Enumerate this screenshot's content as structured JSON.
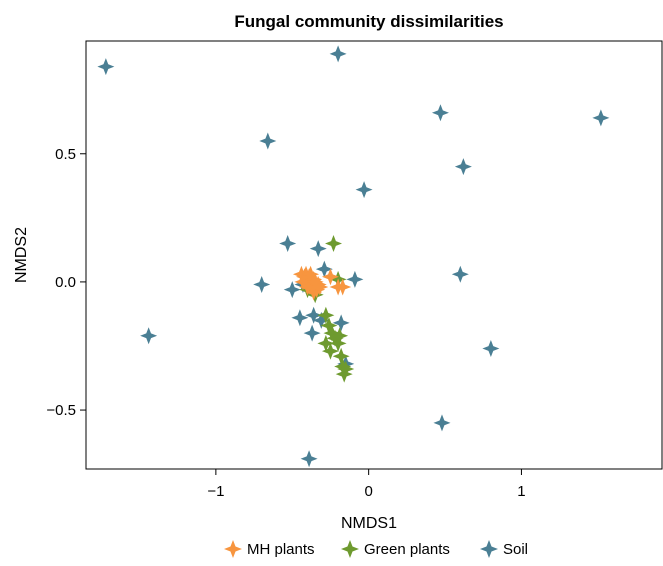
{
  "chart_data": {
    "type": "scatter",
    "title": "Fungal community dissimilarities",
    "xlabel": "NMDS1",
    "ylabel": "NMDS2",
    "xlim": [
      -1.85,
      1.92
    ],
    "ylim": [
      -0.73,
      0.94
    ],
    "xticks": [
      -1,
      0,
      1
    ],
    "yticks": [
      -0.5,
      0.0,
      0.5
    ],
    "xtick_labels": [
      "−1",
      "0",
      "1"
    ],
    "ytick_labels": [
      "−0.5",
      "0.0",
      "0.5"
    ],
    "grid": false,
    "legend_position": "bottom",
    "series": [
      {
        "name": "MH plants",
        "color": "#f7953f",
        "points": [
          [
            -0.44,
            0.03
          ],
          [
            -0.42,
            0.02
          ],
          [
            -0.41,
            0.03
          ],
          [
            -0.4,
            0.01
          ],
          [
            -0.39,
            0.02
          ],
          [
            -0.38,
            0.0
          ],
          [
            -0.37,
            -0.01
          ],
          [
            -0.36,
            0.01
          ],
          [
            -0.35,
            -0.02
          ],
          [
            -0.34,
            -0.03
          ],
          [
            -0.33,
            -0.01
          ],
          [
            -0.32,
            -0.02
          ],
          [
            -0.4,
            -0.02
          ],
          [
            -0.36,
            -0.04
          ],
          [
            -0.25,
            0.02
          ],
          [
            -0.2,
            -0.02
          ],
          [
            -0.17,
            -0.02
          ],
          [
            -0.43,
            0.0
          ],
          [
            -0.38,
            0.03
          ],
          [
            -0.35,
            0.0
          ]
        ]
      },
      {
        "name": "Green plants",
        "color": "#6e9a2f",
        "points": [
          [
            -0.23,
            0.15
          ],
          [
            -0.2,
            0.01
          ],
          [
            -0.37,
            -0.02
          ],
          [
            -0.4,
            -0.03
          ],
          [
            -0.35,
            -0.05
          ],
          [
            -0.28,
            -0.13
          ],
          [
            -0.26,
            -0.17
          ],
          [
            -0.24,
            -0.2
          ],
          [
            -0.22,
            -0.22
          ],
          [
            -0.2,
            -0.24
          ],
          [
            -0.28,
            -0.24
          ],
          [
            -0.18,
            -0.29
          ],
          [
            -0.17,
            -0.33
          ],
          [
            -0.16,
            -0.36
          ],
          [
            -0.15,
            -0.34
          ],
          [
            -0.19,
            -0.21
          ],
          [
            -0.25,
            -0.27
          ]
        ]
      },
      {
        "name": "Soil",
        "color": "#4a7f94",
        "points": [
          [
            -1.72,
            0.84
          ],
          [
            -0.2,
            0.89
          ],
          [
            0.47,
            0.66
          ],
          [
            1.52,
            0.64
          ],
          [
            -0.66,
            0.55
          ],
          [
            0.62,
            0.45
          ],
          [
            -0.03,
            0.36
          ],
          [
            -0.53,
            0.15
          ],
          [
            -0.33,
            0.13
          ],
          [
            -0.29,
            0.05
          ],
          [
            -0.7,
            -0.01
          ],
          [
            -0.5,
            -0.03
          ],
          [
            -0.43,
            -0.01
          ],
          [
            -0.09,
            0.01
          ],
          [
            0.6,
            0.03
          ],
          [
            -0.45,
            -0.14
          ],
          [
            -0.36,
            -0.13
          ],
          [
            -0.31,
            -0.15
          ],
          [
            -0.37,
            -0.2
          ],
          [
            -0.18,
            -0.16
          ],
          [
            -0.15,
            -0.32
          ],
          [
            -1.44,
            -0.21
          ],
          [
            0.8,
            -0.26
          ],
          [
            0.48,
            -0.55
          ],
          [
            -0.39,
            -0.69
          ]
        ]
      }
    ]
  }
}
